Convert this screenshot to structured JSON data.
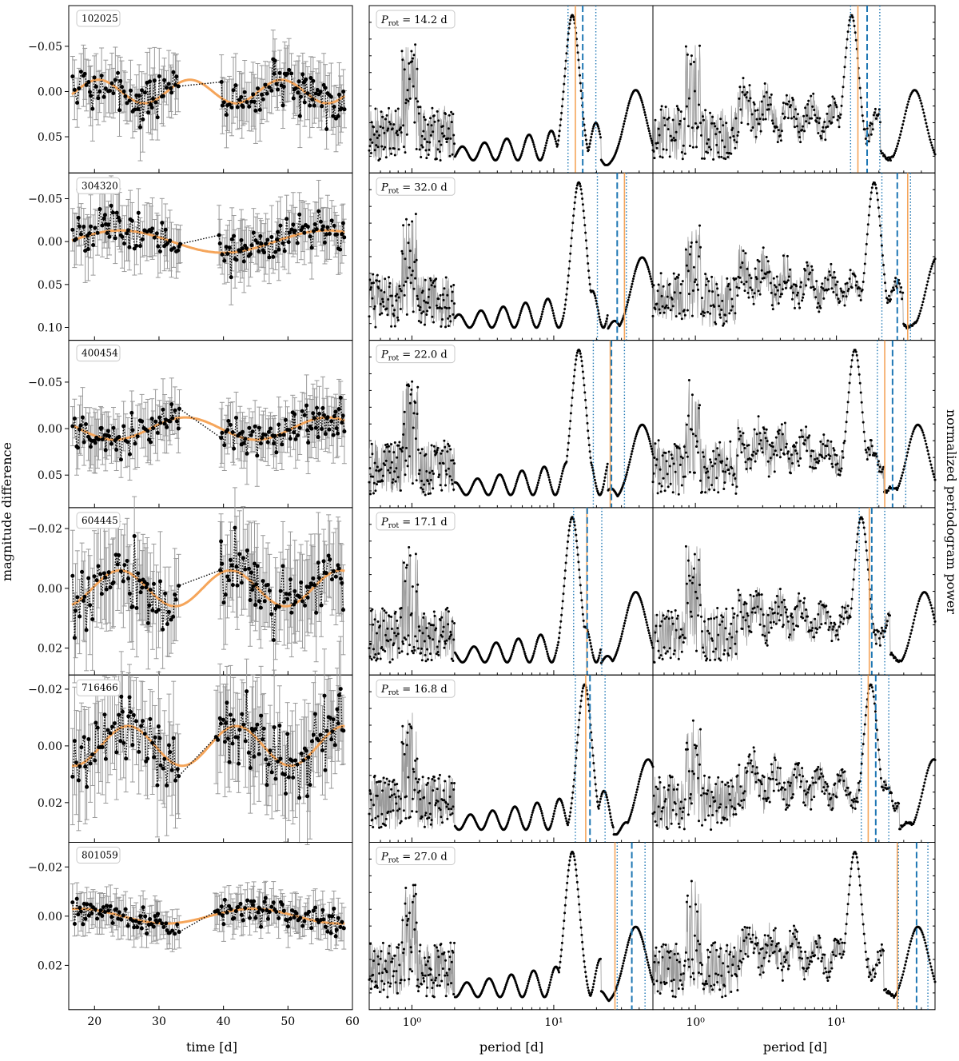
{
  "figure": {
    "ylabel_left": "magnitude difference",
    "ylabel_right": "normalized periodogram power",
    "col0_xlabel": "time [d]",
    "col1_xlabel": "period [d]",
    "col2_xlabel": "period [d]",
    "lc_color": "#000000",
    "err_color": "#999999",
    "fit_color": "#f5a55a",
    "dash_color": "#1f77b4",
    "prot_prefix": "P",
    "prot_sub": "rot",
    "prot_unit": " d"
  },
  "chart_data": [
    {
      "type": "line",
      "panel": "light-curves",
      "xlabel": "time [d]",
      "xlim": [
        16,
        60
      ],
      "xticks": [
        20,
        30,
        40,
        50,
        60
      ],
      "rows": [
        {
          "id": "102025",
          "ylim": [
            -0.095,
            0.09
          ],
          "yticks": [
            -0.05,
            0.0,
            0.05
          ],
          "ytick_labels": [
            "−0.05",
            "0.00",
            "0.05"
          ],
          "amp": 0.013,
          "period": 14.2,
          "phase": 0.3
        },
        {
          "id": "304320",
          "ylim": [
            -0.08,
            0.115
          ],
          "yticks": [
            -0.05,
            0.0,
            0.05,
            0.1
          ],
          "ytick_labels": [
            "−0.05",
            "0.00",
            "0.05",
            "0.10"
          ],
          "amp": 0.013,
          "period": 32.0,
          "phase": 0.0
        },
        {
          "id": "400454",
          "ylim": [
            -0.095,
            0.085
          ],
          "yticks": [
            -0.05,
            0.0,
            0.05
          ],
          "ytick_labels": [
            "−0.05",
            "0.00",
            "0.05"
          ],
          "amp": 0.012,
          "period": 22.0,
          "phase": 0.2
        },
        {
          "id": "604445",
          "ylim": [
            -0.027,
            0.029
          ],
          "yticks": [
            -0.02,
            0.0,
            0.02
          ],
          "ytick_labels": [
            "−0.02",
            "0.00",
            "0.02"
          ],
          "amp": 0.006,
          "period": 17.1,
          "phase": 0.35
        },
        {
          "id": "716466",
          "ylim": [
            -0.025,
            0.034
          ],
          "yticks": [
            -0.02,
            0.0,
            0.02
          ],
          "ytick_labels": [
            "−0.02",
            "0.00",
            "0.02"
          ],
          "amp": 0.007,
          "period": 16.8,
          "phase": 0.25
        },
        {
          "id": "801059",
          "ylim": [
            -0.03,
            0.038
          ],
          "yticks": [
            -0.02,
            0.0,
            0.02
          ],
          "ytick_labels": [
            "−0.02",
            "0.00",
            "0.02"
          ],
          "amp": 0.003,
          "period": 27.0,
          "phase": 0.1
        }
      ]
    },
    {
      "type": "line",
      "panel": "periodogram-short",
      "xscale": "log",
      "xlabel": "period [d]",
      "xlim": [
        0.5,
        50
      ],
      "xticks": [
        1,
        10
      ],
      "xtick_labels": [
        "10⁰",
        "10¹"
      ],
      "rows": [
        {
          "prot": "14.2",
          "peak": 13.5,
          "fit": 14.2,
          "dash": 16.0,
          "dotted": [
            12.6,
            19.8
          ],
          "floor": 0.05
        },
        {
          "prot": "32.0",
          "peak": 15.0,
          "fit": 31.5,
          "dash": 28.0,
          "dotted": [
            20.3,
            32.5
          ],
          "floor": 0.05
        },
        {
          "prot": "22.0",
          "peak": 15.0,
          "fit": 25.0,
          "dash": 25.5,
          "dotted": [
            19.0,
            31.5
          ],
          "floor": 0.05
        },
        {
          "prot": "17.1",
          "peak": 13.5,
          "fit": 17.1,
          "dash": 17.2,
          "dotted": [
            13.8,
            21.8
          ],
          "floor": 0.05
        },
        {
          "prot": "16.8",
          "peak": 16.5,
          "fit": 16.8,
          "dash": 18.0,
          "dotted": [
            14.2,
            23.0
          ],
          "floor": 0.05
        },
        {
          "prot": "27.0",
          "peak": 13.5,
          "fit": 27.0,
          "dash": 35.5,
          "dotted": [
            28.0,
            44.0
          ],
          "floor": 0.05
        }
      ]
    },
    {
      "type": "line",
      "panel": "periodogram-long",
      "xscale": "log",
      "xlabel": "period [d]",
      "xlim": [
        0.5,
        50
      ],
      "xticks": [
        1,
        10
      ],
      "xtick_labels": [
        "10⁰",
        "10¹"
      ],
      "rows": [
        {
          "peak": 12.8,
          "fit": 14.2,
          "dash": 16.5,
          "dotted": [
            12.6,
            20.3
          ]
        },
        {
          "peak": 18.5,
          "fit": 32.0,
          "dash": 27.0,
          "dotted": [
            21.0,
            33.5
          ]
        },
        {
          "peak": 13.5,
          "fit": 22.0,
          "dash": 25.0,
          "dotted": [
            19.5,
            31.0
          ]
        },
        {
          "peak": 15.0,
          "fit": 17.1,
          "dash": 17.8,
          "dotted": [
            14.5,
            22.0
          ]
        },
        {
          "peak": 17.5,
          "fit": 16.8,
          "dash": 19.0,
          "dotted": [
            15.0,
            23.5
          ]
        },
        {
          "peak": 13.5,
          "fit": 27.0,
          "dash": 37.0,
          "dotted": [
            27.5,
            44.5
          ]
        }
      ]
    }
  ]
}
